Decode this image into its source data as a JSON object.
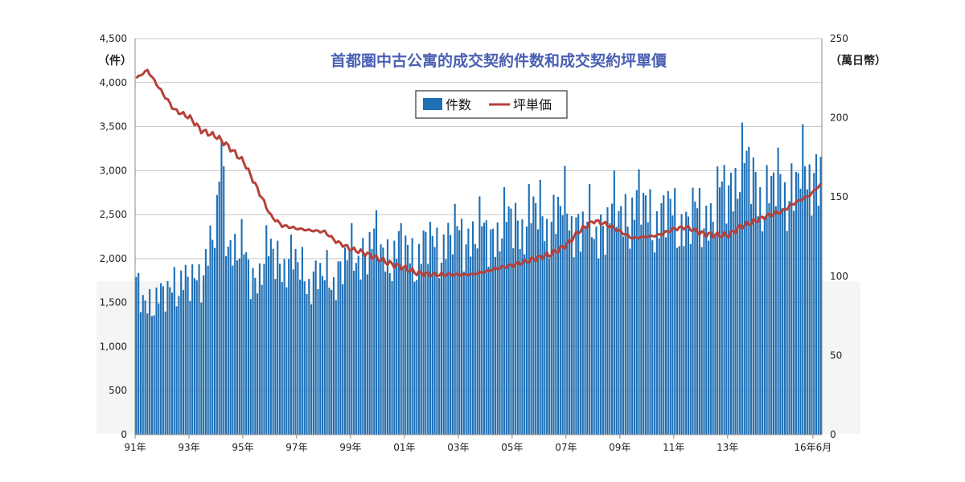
{
  "chart_data": {
    "type": "bar+line",
    "title": "首都圏中古公寓的成交契約件数和成交契約坪單價",
    "left_axis": {
      "unit_label": "（件）",
      "ylim": [
        0,
        4500
      ],
      "ticks": [
        "0",
        "500",
        "1,000",
        "1,500",
        "2,000",
        "2,500",
        "3,000",
        "3,500",
        "4,000",
        "4,500"
      ]
    },
    "right_axis": {
      "unit_label": "（萬日幣）",
      "ylim": [
        0,
        250
      ],
      "ticks": [
        "0",
        "50",
        "100",
        "150",
        "200",
        "250"
      ]
    },
    "x_ticks": [
      "91年",
      "93年",
      "95年",
      "97年",
      "99年",
      "01年",
      "03年",
      "05年",
      "07年",
      "09年",
      "11年",
      "13年",
      "16年6月"
    ],
    "grid": true,
    "legend_placement": "top-center",
    "series": [
      {
        "name": "件数",
        "type": "bar",
        "axis": "left",
        "color": "#1f6fb5"
      },
      {
        "name": "坪単価",
        "type": "line",
        "axis": "right",
        "color": "#b5413a"
      }
    ],
    "x_range": {
      "start": "1991-01",
      "end": "2016-06",
      "frequency": "monthly"
    },
    "bar_anchors": [
      [
        "1991-01",
        1600
      ],
      [
        "1991-06",
        1550
      ],
      [
        "1992-01",
        1500
      ],
      [
        "1992-06",
        1800
      ],
      [
        "1993-01",
        1650
      ],
      [
        "1993-06",
        1900
      ],
      [
        "1994-01",
        2300
      ],
      [
        "1994-03",
        3300
      ],
      [
        "1994-06",
        2200
      ],
      [
        "1995-01",
        2000
      ],
      [
        "1995-06",
        1800
      ],
      [
        "1996-01",
        2050
      ],
      [
        "1996-06",
        2000
      ],
      [
        "1997-01",
        1900
      ],
      [
        "1997-06",
        1800
      ],
      [
        "1998-01",
        1750
      ],
      [
        "1998-06",
        1850
      ],
      [
        "1999-01",
        2000
      ],
      [
        "1999-06",
        2100
      ],
      [
        "2000-01",
        2150
      ],
      [
        "2000-06",
        2050
      ],
      [
        "2001-01",
        2100
      ],
      [
        "2001-06",
        2050
      ],
      [
        "2002-01",
        2150
      ],
      [
        "2002-06",
        2200
      ],
      [
        "2003-01",
        2250
      ],
      [
        "2003-06",
        2300
      ],
      [
        "2004-01",
        2250
      ],
      [
        "2004-06",
        2350
      ],
      [
        "2005-01",
        2400
      ],
      [
        "2005-06",
        2450
      ],
      [
        "2006-01",
        2500
      ],
      [
        "2006-06",
        2450
      ],
      [
        "2007-01",
        2550
      ],
      [
        "2007-06",
        2400
      ],
      [
        "2008-01",
        2300
      ],
      [
        "2008-06",
        2450
      ],
      [
        "2009-01",
        2500
      ],
      [
        "2009-06",
        2600
      ],
      [
        "2010-01",
        2550
      ],
      [
        "2010-06",
        2450
      ],
      [
        "2011-01",
        2500
      ],
      [
        "2011-06",
        2400
      ],
      [
        "2012-01",
        2500
      ],
      [
        "2012-06",
        2550
      ],
      [
        "2013-01",
        2800
      ],
      [
        "2013-06",
        3100
      ],
      [
        "2014-01",
        2850
      ],
      [
        "2014-06",
        2700
      ],
      [
        "2015-01",
        2850
      ],
      [
        "2015-06",
        2800
      ],
      [
        "2016-01",
        3000
      ],
      [
        "2016-06",
        3050
      ]
    ],
    "line_anchors": [
      [
        "1991-01",
        225
      ],
      [
        "1991-06",
        230
      ],
      [
        "1992-01",
        215
      ],
      [
        "1992-06",
        205
      ],
      [
        "1993-01",
        200
      ],
      [
        "1993-06",
        192
      ],
      [
        "1994-01",
        188
      ],
      [
        "1994-06",
        182
      ],
      [
        "1995-01",
        172
      ],
      [
        "1995-06",
        158
      ],
      [
        "1996-01",
        138
      ],
      [
        "1996-06",
        132
      ],
      [
        "1997-01",
        130
      ],
      [
        "1997-06",
        129
      ],
      [
        "1998-01",
        128
      ],
      [
        "1998-06",
        122
      ],
      [
        "1999-01",
        117
      ],
      [
        "1999-06",
        115
      ],
      [
        "2000-01",
        111
      ],
      [
        "2000-06",
        108
      ],
      [
        "2001-01",
        105
      ],
      [
        "2001-06",
        102
      ],
      [
        "2002-01",
        101
      ],
      [
        "2002-06",
        101
      ],
      [
        "2003-01",
        101
      ],
      [
        "2003-06",
        101
      ],
      [
        "2004-01",
        103
      ],
      [
        "2004-06",
        105
      ],
      [
        "2005-01",
        107
      ],
      [
        "2005-06",
        109
      ],
      [
        "2006-01",
        112
      ],
      [
        "2006-06",
        114
      ],
      [
        "2007-01",
        120
      ],
      [
        "2007-06",
        128
      ],
      [
        "2008-01",
        135
      ],
      [
        "2008-06",
        133
      ],
      [
        "2009-01",
        128
      ],
      [
        "2009-06",
        124
      ],
      [
        "2010-01",
        125
      ],
      [
        "2010-06",
        126
      ],
      [
        "2011-01",
        130
      ],
      [
        "2011-06",
        131
      ],
      [
        "2012-01",
        127
      ],
      [
        "2012-06",
        126
      ],
      [
        "2013-01",
        126
      ],
      [
        "2013-06",
        131
      ],
      [
        "2014-01",
        135
      ],
      [
        "2014-06",
        138
      ],
      [
        "2015-01",
        141
      ],
      [
        "2015-06",
        146
      ],
      [
        "2016-01",
        151
      ],
      [
        "2016-06",
        158
      ]
    ]
  }
}
